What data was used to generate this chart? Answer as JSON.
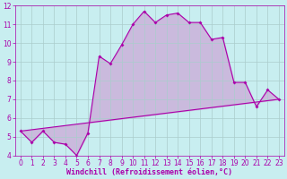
{
  "xlabel": "Windchill (Refroidissement éolien,°C)",
  "bg_color": "#c8eef0",
  "grid_color": "#aacccc",
  "line_color": "#aa00aa",
  "fill_color": "#cc88cc",
  "line1_x": [
    0,
    1,
    2,
    3,
    4,
    5,
    6,
    7,
    8,
    9,
    10,
    11,
    12,
    13,
    14,
    15,
    16,
    17,
    18,
    19,
    20,
    21,
    22,
    23
  ],
  "line1_y": [
    5.3,
    4.7,
    5.3,
    4.7,
    4.6,
    4.0,
    5.2,
    9.3,
    8.9,
    9.9,
    11.0,
    11.7,
    11.1,
    11.5,
    11.6,
    11.1,
    11.1,
    10.2,
    10.3,
    7.9,
    7.9,
    6.6,
    7.5,
    7.0
  ],
  "line2_x": [
    0,
    23
  ],
  "line2_y": [
    5.3,
    7.0
  ],
  "xlim": [
    -0.5,
    23.5
  ],
  "ylim": [
    4,
    12
  ],
  "xticks": [
    0,
    1,
    2,
    3,
    4,
    5,
    6,
    7,
    8,
    9,
    10,
    11,
    12,
    13,
    14,
    15,
    16,
    17,
    18,
    19,
    20,
    21,
    22,
    23
  ],
  "yticks": [
    4,
    5,
    6,
    7,
    8,
    9,
    10,
    11,
    12
  ],
  "xlabel_fontsize": 6,
  "tick_fontsize": 5.5,
  "linewidth": 0.8,
  "markersize": 2.0,
  "spine_color": "#aa00aa"
}
